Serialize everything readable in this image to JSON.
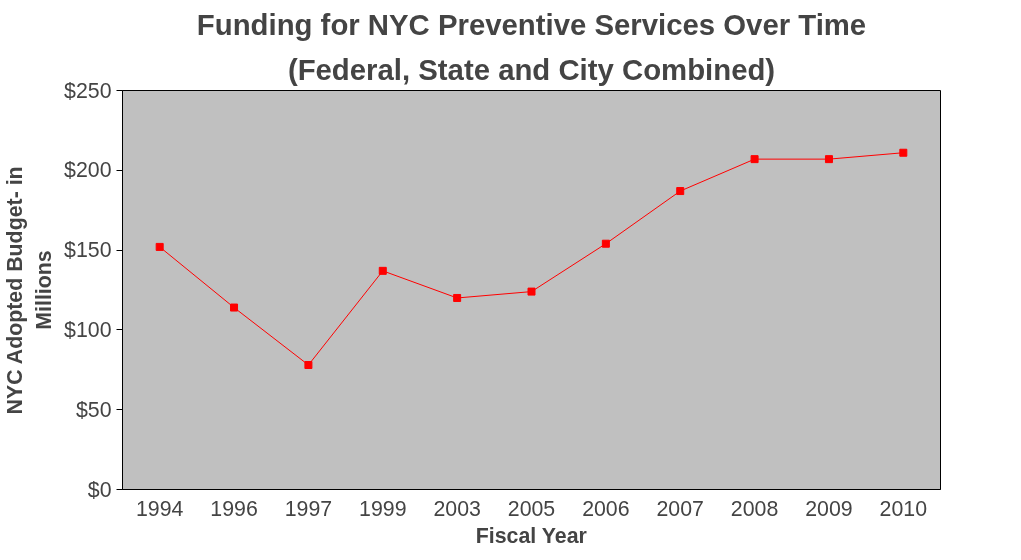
{
  "chart_data": {
    "type": "line",
    "title": "Funding for NYC Preventive Services Over Time",
    "subtitle": "(Federal, State and City Combined)",
    "xlabel": "Fiscal Year",
    "ylabel": "NYC Adopted Budget- in\nMillions",
    "categories": [
      "1994",
      "1996",
      "1997",
      "1999",
      "2003",
      "2005",
      "2006",
      "2007",
      "2008",
      "2009",
      "2010"
    ],
    "series": [
      {
        "color": "#ff0000",
        "values": [
          152,
          114,
          78,
          137,
          120,
          124,
          154,
          187,
          207,
          207,
          211
        ]
      }
    ],
    "ylim": [
      0,
      250
    ],
    "yticks": [
      {
        "value": 0,
        "label": "$0"
      },
      {
        "value": 50,
        "label": "$50"
      },
      {
        "value": 100,
        "label": "$100"
      },
      {
        "value": 150,
        "label": "$150"
      },
      {
        "value": 200,
        "label": "$200"
      },
      {
        "value": 250,
        "label": "$250"
      }
    ],
    "grid": false,
    "marker": "square",
    "line_style": "solid"
  }
}
